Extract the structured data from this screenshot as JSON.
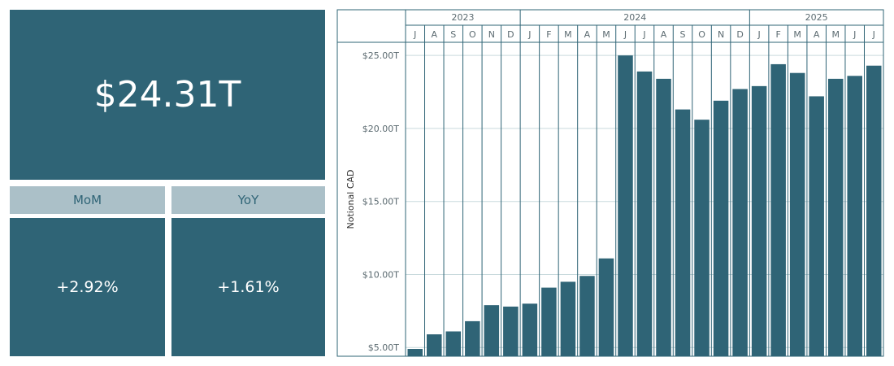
{
  "kpis": {
    "total": "$24.31T",
    "mom_label": "MoM",
    "yoy_label": "YoY",
    "mom_value": "+2.92%",
    "yoy_value": "+1.61%"
  },
  "colors": {
    "bar": "#2f6476",
    "header_bg": "#abc0c8",
    "gridline": "#c9dadd",
    "frame": "#2f6476"
  },
  "chart_data": {
    "type": "bar",
    "title": "",
    "xlabel": "",
    "ylabel": "Notional CAD",
    "ylim": [
      4.4,
      25.9
    ],
    "y_ticks": [
      {
        "value": 5,
        "label": "$5.00T"
      },
      {
        "value": 10,
        "label": "$10.00T"
      },
      {
        "value": 15,
        "label": "$15.00T"
      },
      {
        "value": 20,
        "label": "$20.00T"
      },
      {
        "value": 25,
        "label": "$25.00T"
      }
    ],
    "years": [
      {
        "label": "2023",
        "count": 6
      },
      {
        "label": "2024",
        "count": 12
      },
      {
        "label": "2025",
        "count": 7
      }
    ],
    "categories": [
      "J",
      "A",
      "S",
      "O",
      "N",
      "D",
      "J",
      "F",
      "M",
      "A",
      "M",
      "J",
      "J",
      "A",
      "S",
      "O",
      "N",
      "D",
      "J",
      "F",
      "M",
      "A",
      "M",
      "J",
      "J"
    ],
    "values": [
      4.9,
      5.9,
      6.1,
      6.8,
      7.9,
      7.8,
      8.0,
      9.1,
      9.5,
      9.9,
      11.1,
      25.0,
      23.9,
      23.4,
      21.3,
      20.6,
      21.9,
      22.7,
      22.9,
      24.4,
      23.8,
      22.2,
      23.4,
      23.6,
      24.3
    ]
  }
}
